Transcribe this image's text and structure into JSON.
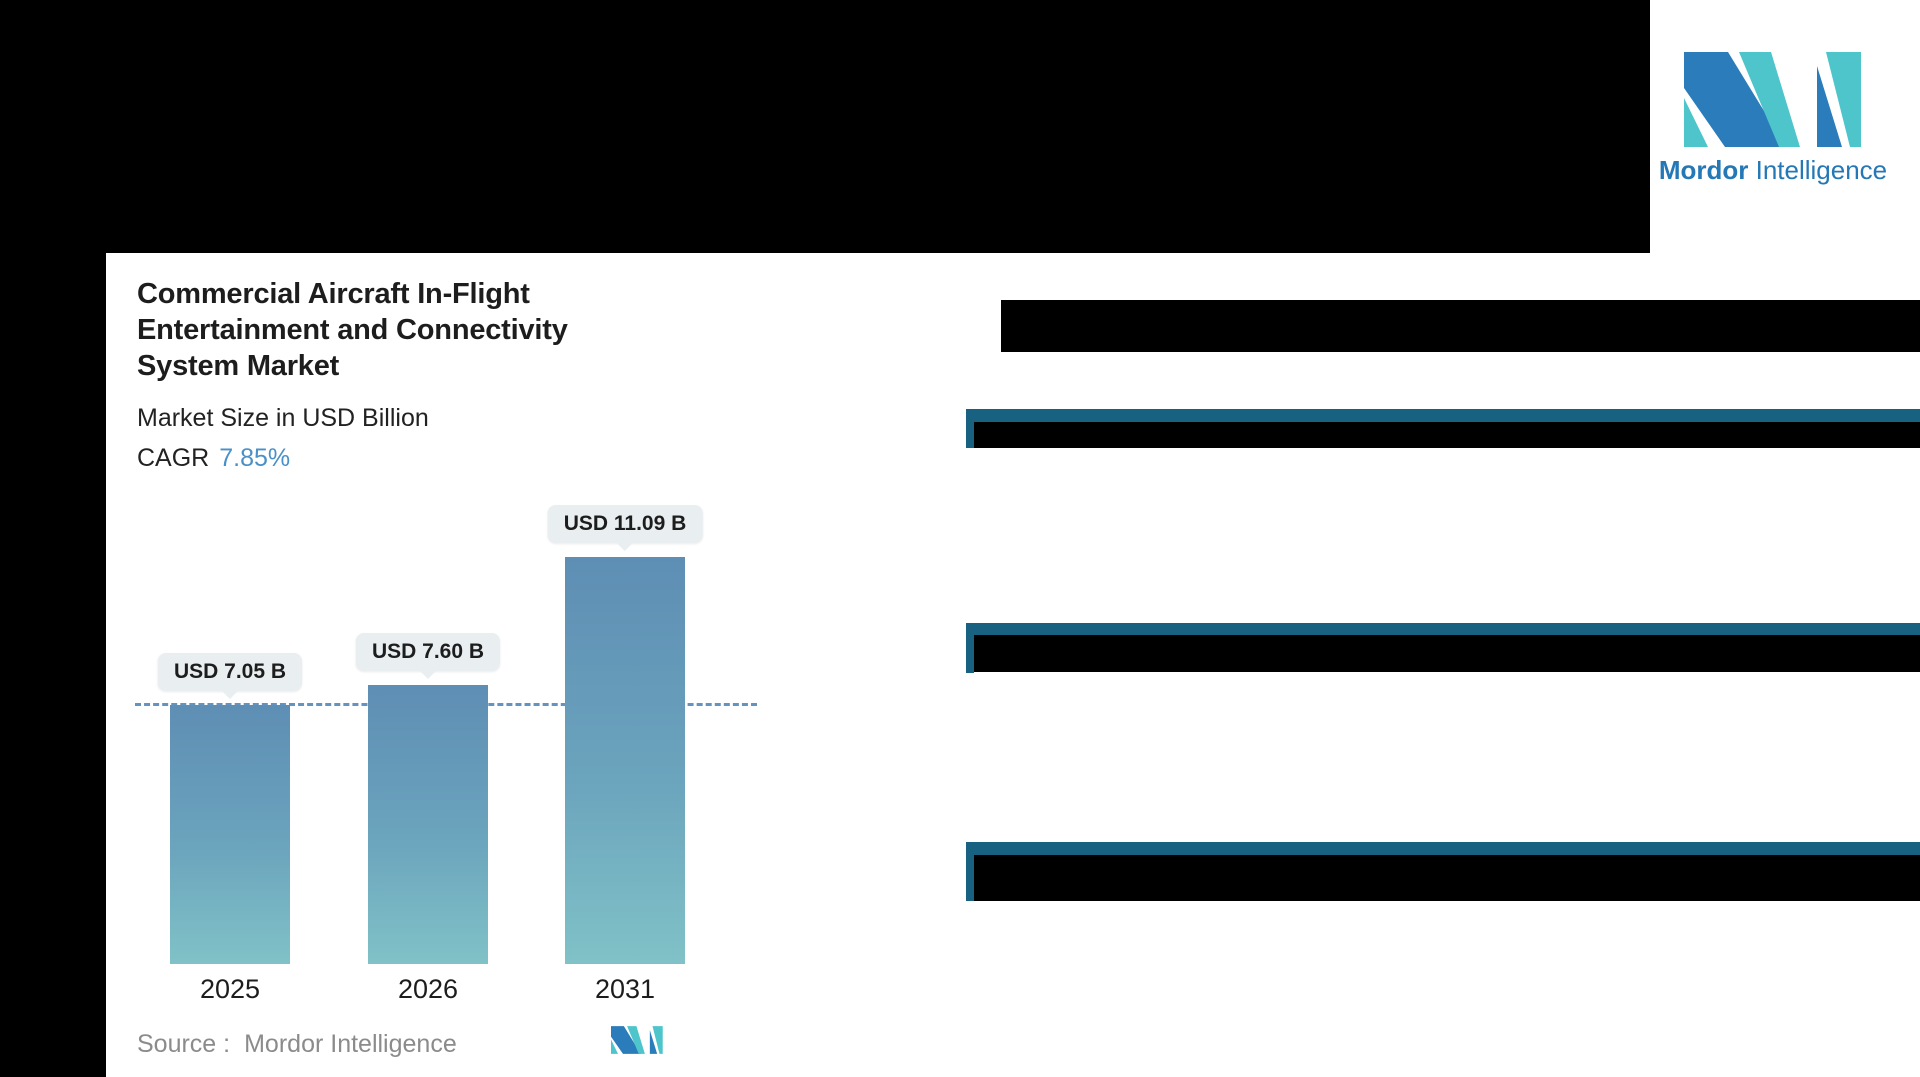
{
  "brand": {
    "name_bold": "Mordor",
    "name_light": "Intelligence"
  },
  "report": {
    "title_lines": [
      "Commercial Aircraft In-Flight",
      "Entertainment and Connectivity",
      "System Market"
    ],
    "subtitle": "Market Size in USD Billion",
    "cagr_label": "CAGR",
    "cagr_value": "7.85%",
    "source_label": "Source :",
    "source_value": "Mordor Intelligence"
  },
  "chart_data": {
    "type": "bar",
    "title": "Commercial Aircraft In-Flight Entertainment and Connectivity System Market",
    "subtitle": "Market Size in USD Billion",
    "cagr": "7.85%",
    "unit": "USD Billion",
    "categories": [
      "2025",
      "2026",
      "2031"
    ],
    "values": [
      7.05,
      7.6,
      11.09
    ],
    "value_labels": [
      "USD 7.05 B",
      "USD 7.60 B",
      "USD 11.09 B"
    ],
    "baseline_value": 7.05,
    "grid": "off",
    "legend": "none",
    "ylim": [
      0,
      11.09
    ]
  },
  "colors": {
    "bar_top": "#5e8eb4",
    "bar_bottom": "#80c2c7",
    "dashed_line": "#6593c0",
    "chip_bg": "#e9eef1",
    "section_teal": "#186181",
    "cagr_blue": "#4a90c8",
    "logo_blue": "#2b7cba",
    "logo_teal": "#4ec5cb",
    "brand_text_blue": "#2478b5",
    "source_gray": "#8b8b8b",
    "mask_black": "#000000"
  }
}
